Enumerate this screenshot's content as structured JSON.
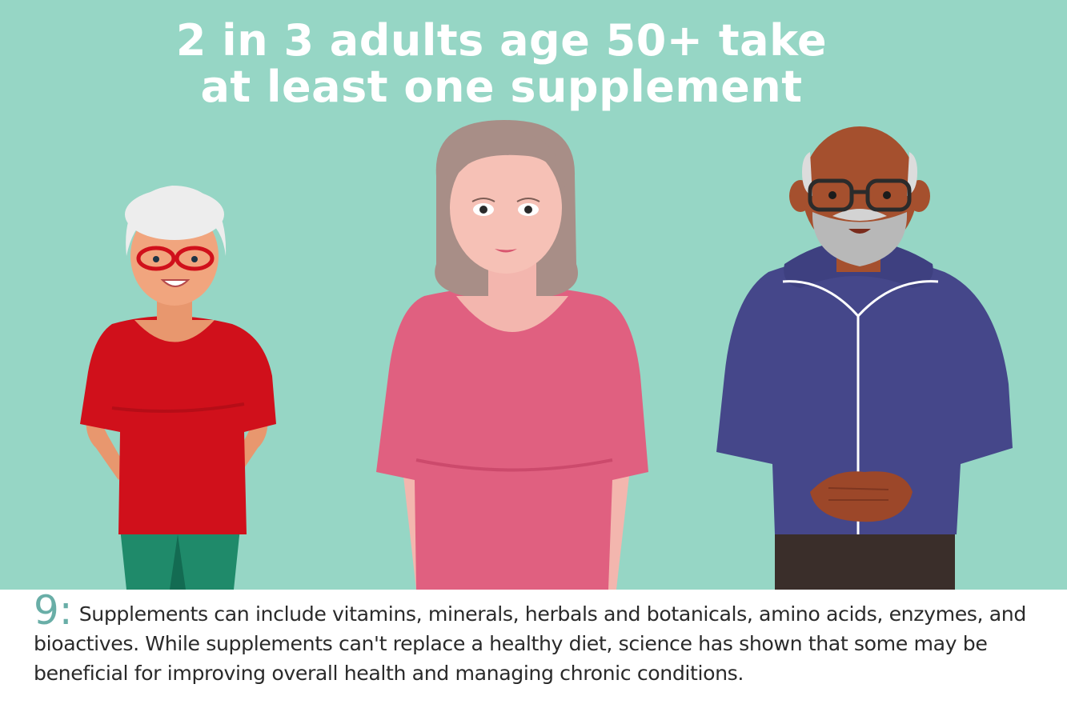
{
  "headline": {
    "line1": "2 in 3 adults age 50+ take",
    "line2": "at least one supplement"
  },
  "caption": {
    "number": "9:",
    "text": "Supplements can include vitamins, minerals, herbals and botanicals, amino acids, enzymes, and bioactives. While supplements can't replace a healthy diet, science has shown that some may be beneficial for improving overall health and managing chronic conditions."
  },
  "colors": {
    "background": "#96d6c5",
    "headline_text": "#ffffff",
    "caption_number": "#69aea7",
    "caption_text": "#2a2a2a"
  },
  "illustration": {
    "people": [
      "woman-red-shirt",
      "woman-pink-shirt",
      "man-blue-jacket"
    ]
  }
}
